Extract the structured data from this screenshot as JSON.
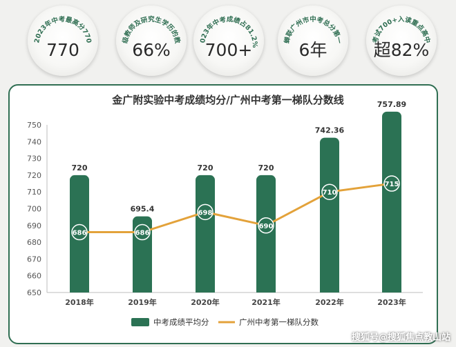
{
  "stats": [
    {
      "caption": "2023年中考最高分770",
      "value": "770"
    },
    {
      "caption": "一级教师及研究生学历的教师",
      "value": "66%"
    },
    {
      "caption": "2023年中考成绩占81.2%",
      "value": "700+"
    },
    {
      "caption": "蝉联广州市中考总分第一",
      "value": "6年"
    },
    {
      "caption": "考试700+入读重点高中",
      "value": "超82%"
    }
  ],
  "chart_data": {
    "type": "bar",
    "title": "金广附实验中考成绩均分/广州中考第一梯队分数线",
    "categories": [
      "2018年",
      "2019年",
      "2020年",
      "2021年",
      "2022年",
      "2023年"
    ],
    "series": [
      {
        "name": "中考成绩平均分",
        "type": "bar",
        "values": [
          720,
          695.4,
          720,
          720,
          742.36,
          757.89
        ],
        "labels": [
          "720",
          "695.4",
          "720",
          "720",
          "742.36",
          "757.89"
        ]
      },
      {
        "name": "广州中考第一梯队分数",
        "type": "line",
        "values": [
          686,
          686,
          698,
          690,
          710,
          715
        ],
        "labels": [
          "686",
          "686",
          "698",
          "690",
          "710",
          "715"
        ]
      }
    ],
    "yticks": [
      650,
      660,
      670,
      680,
      690,
      700,
      710,
      720,
      730,
      740,
      750
    ],
    "ylim": [
      650,
      755
    ],
    "legend_position": "bottom",
    "grid": false,
    "colors": {
      "bar": "#2b7254",
      "line": "#e3a23a",
      "frame": "#2f6e52"
    }
  },
  "watermark": "搜狐号@搜狐焦点教山站"
}
